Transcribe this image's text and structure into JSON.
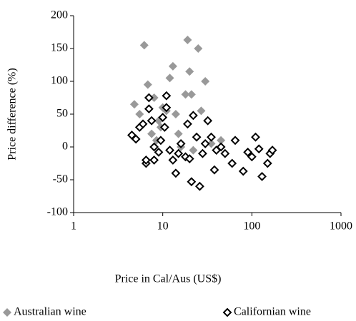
{
  "chart_data": {
    "type": "scatter",
    "xlabel": "Price in Cal/Aus (US$)",
    "ylabel": "Price difference (%)",
    "xscale": "log",
    "xlim": [
      1,
      1000
    ],
    "xticks": [
      1,
      10,
      100,
      1000
    ],
    "ylim": [
      -100,
      200
    ],
    "yticks": [
      -100,
      -50,
      0,
      50,
      100,
      150,
      200
    ],
    "legend": "bottom",
    "series": [
      {
        "name": "Australian wine",
        "color": "#999999",
        "marker_fill": "#999999",
        "x": [
          4.8,
          5.5,
          6.2,
          6.8,
          8,
          7.5,
          9,
          10,
          11,
          12,
          13,
          14,
          15,
          18,
          19,
          20,
          21,
          25,
          27,
          30,
          35,
          45,
          9.5,
          16,
          22,
          6,
          8.5
        ],
        "values": [
          65,
          50,
          155,
          95,
          75,
          20,
          40,
          60,
          55,
          105,
          123,
          50,
          20,
          80,
          163,
          115,
          80,
          150,
          55,
          100,
          5,
          10,
          30,
          0,
          -5,
          35,
          10
        ]
      },
      {
        "name": "Californian wine",
        "color": "#000000",
        "marker_fill": "#ffffff",
        "x": [
          4.5,
          5,
          5.5,
          6,
          6.5,
          6.5,
          7,
          7,
          7.5,
          8,
          8,
          9,
          9.5,
          10,
          10.5,
          11,
          11,
          12,
          13,
          14,
          15,
          16,
          18,
          19,
          20,
          21,
          22,
          24,
          26,
          28,
          30,
          32,
          35,
          38,
          40,
          45,
          50,
          60,
          65,
          80,
          90,
          100,
          110,
          120,
          130,
          150,
          160,
          170
        ],
        "values": [
          18,
          12,
          30,
          35,
          -25,
          -20,
          75,
          58,
          40,
          0,
          -20,
          -8,
          10,
          45,
          30,
          78,
          60,
          -5,
          -20,
          -40,
          -10,
          5,
          -15,
          35,
          -18,
          -53,
          48,
          15,
          -60,
          -10,
          5,
          40,
          15,
          -35,
          -5,
          0,
          -10,
          -25,
          10,
          -37,
          -8,
          -15,
          15,
          -3,
          -45,
          -25,
          -10,
          -5
        ]
      }
    ]
  }
}
